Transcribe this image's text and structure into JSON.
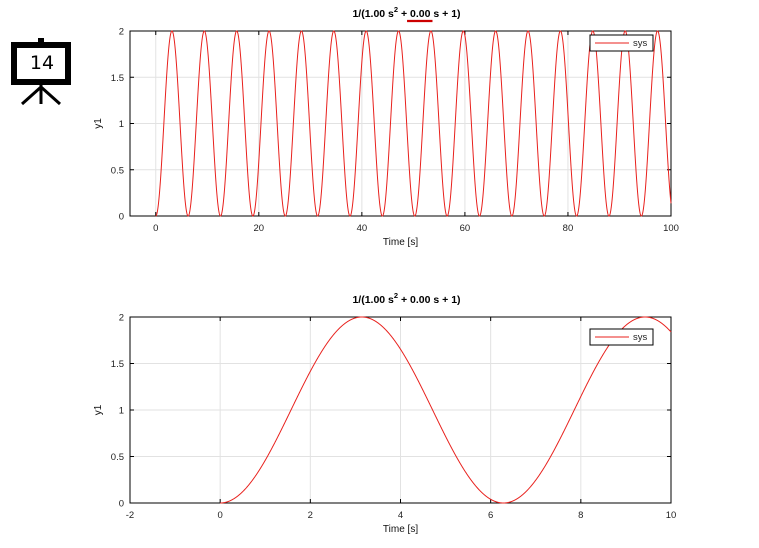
{
  "slide": {
    "number": "14",
    "icon": "presentation-board-icon"
  },
  "colors": {
    "line": "#e8201c",
    "underline": "#cc0000",
    "grid": "#e2e2e2",
    "axis": "#000000"
  },
  "chart_data": [
    {
      "type": "line",
      "title": {
        "pre": "1/(1.00 s",
        "sup": "2",
        "mid": " + ",
        "coef": "0.00",
        "post": " s + 1)"
      },
      "title_coef_underlined": true,
      "xlabel": "Time [s]",
      "ylabel": "y1",
      "xlim": [
        -5,
        100
      ],
      "ylim": [
        0,
        2
      ],
      "xticks": [
        "0",
        "20",
        "40",
        "60",
        "80",
        "100"
      ],
      "yticks": [
        "0",
        "0.5",
        "1",
        "1.5",
        "2"
      ],
      "grid": true,
      "legend": {
        "position": "top-right",
        "entries": [
          "sys"
        ]
      },
      "series": [
        {
          "name": "sys",
          "function": "1 - cos(t)",
          "t_start": 0,
          "t_end": 100
        }
      ]
    },
    {
      "type": "line",
      "title": {
        "pre": "1/(1.00 s",
        "sup": "2",
        "mid": " + ",
        "coef": "0.00",
        "post": " s + 1)"
      },
      "title_coef_underlined": false,
      "xlabel": "Time [s]",
      "ylabel": "y1",
      "xlim": [
        -2,
        10
      ],
      "ylim": [
        0,
        2
      ],
      "xticks": [
        "-2",
        "0",
        "2",
        "4",
        "6",
        "8",
        "10"
      ],
      "yticks": [
        "0",
        "0.5",
        "1",
        "1.5",
        "2"
      ],
      "grid": true,
      "legend": {
        "position": "top-right",
        "entries": [
          "sys"
        ]
      },
      "series": [
        {
          "name": "sys",
          "function": "1 - cos(t)",
          "t_start": 0,
          "t_end": 10
        }
      ]
    }
  ]
}
